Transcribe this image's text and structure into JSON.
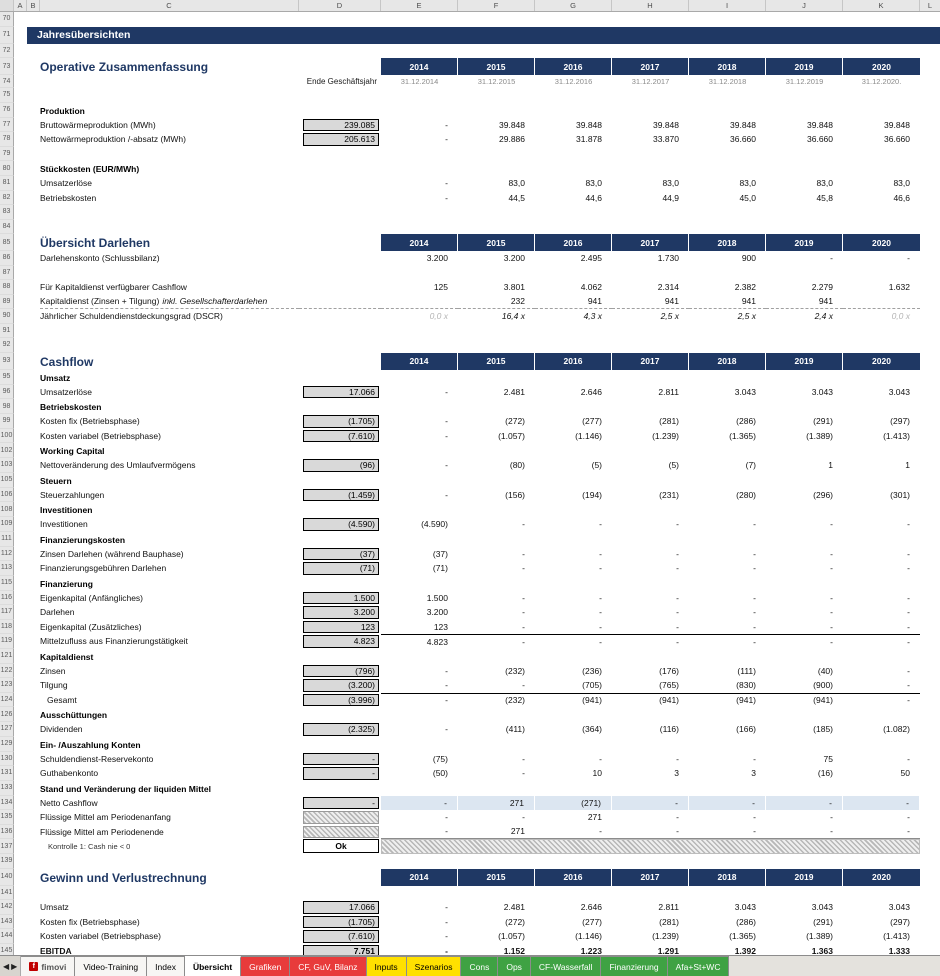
{
  "banner": "Jahresübersichten",
  "columns": [
    "A",
    "B",
    "C",
    "D",
    "E",
    "F",
    "G",
    "H",
    "I",
    "J",
    "K",
    "L"
  ],
  "years": [
    "2014",
    "2015",
    "2016",
    "2017",
    "2018",
    "2019",
    "2020"
  ],
  "dates": [
    "31.12.2014",
    "31.12.2015",
    "31.12.2016",
    "31.12.2017",
    "31.12.2018",
    "31.12.2019",
    "31.12.2020."
  ],
  "colors": {
    "navy": "#1F3864",
    "box_grey": "#D9D9D9",
    "highlight_blue": "#DCE6F1",
    "tab_red": "#E83B3B",
    "tab_yellow": "#FFE000",
    "tab_green": "#3FA243"
  },
  "rows": [
    {
      "n": "70",
      "t": "empty"
    },
    {
      "n": "71",
      "t": "banner"
    },
    {
      "n": "72",
      "t": "empty"
    },
    {
      "n": "73",
      "t": "years",
      "title": "Operative Zusammenfassung"
    },
    {
      "n": "74",
      "t": "dates",
      "label": "Ende Geschäftsjahr"
    },
    {
      "n": "75",
      "t": "empty"
    },
    {
      "n": "76",
      "t": "heading",
      "label": "Produktion"
    },
    {
      "n": "77",
      "t": "data",
      "label": "Bruttowärmeproduktion (MWh)",
      "d": "239.085",
      "v": [
        "-",
        "39.848",
        "39.848",
        "39.848",
        "39.848",
        "39.848",
        "39.848"
      ]
    },
    {
      "n": "78",
      "t": "data",
      "label": "Nettowärmeproduktion /-absatz (MWh)",
      "d": "205.613",
      "v": [
        "-",
        "29.886",
        "31.878",
        "33.870",
        "36.660",
        "36.660",
        "36.660"
      ]
    },
    {
      "n": "79",
      "t": "empty"
    },
    {
      "n": "80",
      "t": "heading",
      "label": "Stückkosten (EUR/MWh)"
    },
    {
      "n": "81",
      "t": "data",
      "label": "Umsatzerlöse",
      "v": [
        "-",
        "83,0",
        "83,0",
        "83,0",
        "83,0",
        "83,0",
        "83,0"
      ]
    },
    {
      "n": "82",
      "t": "data",
      "label": "Betriebskosten",
      "v": [
        "-",
        "44,5",
        "44,6",
        "44,9",
        "45,0",
        "45,8",
        "46,6"
      ]
    },
    {
      "n": "83",
      "t": "empty"
    },
    {
      "n": "84",
      "t": "empty"
    },
    {
      "n": "85",
      "t": "years",
      "title": "Übersicht Darlehen"
    },
    {
      "n": "86",
      "t": "data",
      "label": "Darlehenskonto (Schlussbilanz)",
      "v": [
        "3.200",
        "3.200",
        "2.495",
        "1.730",
        "900",
        "-",
        "-"
      ]
    },
    {
      "n": "87",
      "t": "empty"
    },
    {
      "n": "88",
      "t": "data",
      "label": "Für Kapitaldienst verfügbarer Cashflow",
      "v": [
        "125",
        "3.801",
        "4.062",
        "2.314",
        "2.382",
        "2.279",
        "1.632"
      ]
    },
    {
      "n": "89",
      "t": "data",
      "label": "Kapitaldienst (Zinsen + Tilgung)",
      "label_italic": "inkl. Gesellschafterdarlehen",
      "v": [
        "",
        "232",
        "941",
        "941",
        "941",
        "941",
        ""
      ],
      "dashed": true
    },
    {
      "n": "90",
      "t": "data",
      "label": "Jährlicher Schuldendienstdeckungsgrad (DSCR)",
      "v": [
        "0,0 x",
        "16,4 x",
        "4,3 x",
        "2,5 x",
        "2,5 x",
        "2,4 x",
        "0,0 x"
      ],
      "muted": [
        0,
        6
      ],
      "iv": true
    },
    {
      "n": "91",
      "t": "empty"
    },
    {
      "n": "92",
      "t": "empty"
    },
    {
      "n": "93",
      "t": "years",
      "title": "Cashflow"
    },
    {
      "n": "95",
      "t": "heading",
      "label": "Umsatz"
    },
    {
      "n": "96",
      "t": "data",
      "label": "Umsatzerlöse",
      "d": "17.066",
      "v": [
        "-",
        "2.481",
        "2.646",
        "2.811",
        "3.043",
        "3.043",
        "3.043"
      ]
    },
    {
      "n": "98",
      "t": "heading",
      "label": "Betriebskosten"
    },
    {
      "n": "99",
      "t": "data",
      "label": "Kosten fix (Betriebsphase)",
      "d": "(1.705)",
      "v": [
        "-",
        "(272)",
        "(277)",
        "(281)",
        "(286)",
        "(291)",
        "(297)"
      ]
    },
    {
      "n": "100",
      "t": "data",
      "label": "Kosten variabel (Betriebsphase)",
      "d": "(7.610)",
      "v": [
        "-",
        "(1.057)",
        "(1.146)",
        "(1.239)",
        "(1.365)",
        "(1.389)",
        "(1.413)"
      ]
    },
    {
      "n": "102",
      "t": "heading",
      "label": "Working Capital"
    },
    {
      "n": "103",
      "t": "data",
      "label": "Nettoveränderung des Umlaufvermögens",
      "d": "(96)",
      "v": [
        "-",
        "(80)",
        "(5)",
        "(5)",
        "(7)",
        "1",
        "1"
      ]
    },
    {
      "n": "105",
      "t": "heading",
      "label": "Steuern"
    },
    {
      "n": "106",
      "t": "data",
      "label": "Steuerzahlungen",
      "d": "(1.459)",
      "v": [
        "-",
        "(156)",
        "(194)",
        "(231)",
        "(280)",
        "(296)",
        "(301)"
      ]
    },
    {
      "n": "108",
      "t": "heading",
      "label": "Investitionen"
    },
    {
      "n": "109",
      "t": "data",
      "label": "Investitionen",
      "d": "(4.590)",
      "v": [
        "(4.590)",
        "-",
        "-",
        "-",
        "-",
        "-",
        "-"
      ]
    },
    {
      "n": "111",
      "t": "heading",
      "label": "Finanzierungskosten"
    },
    {
      "n": "112",
      "t": "data",
      "label": "Zinsen Darlehen (während Bauphase)",
      "d": "(37)",
      "v": [
        "(37)",
        "-",
        "-",
        "-",
        "-",
        "-",
        "-"
      ]
    },
    {
      "n": "113",
      "t": "data",
      "label": "Finanzierungsgebühren Darlehen",
      "d": "(71)",
      "v": [
        "(71)",
        "-",
        "-",
        "-",
        "-",
        "-",
        "-"
      ]
    },
    {
      "n": "115",
      "t": "heading",
      "label": "Finanzierung"
    },
    {
      "n": "116",
      "t": "data",
      "label": "Eigenkapital (Anfängliches)",
      "d": "1.500",
      "v": [
        "1.500",
        "-",
        "-",
        "-",
        "-",
        "-",
        "-"
      ]
    },
    {
      "n": "117",
      "t": "data",
      "label": "Darlehen",
      "d": "3.200",
      "v": [
        "3.200",
        "-",
        "-",
        "-",
        "-",
        "-",
        "-"
      ]
    },
    {
      "n": "118",
      "t": "data",
      "label": "Eigenkapital (Zusätzliches)",
      "d": "123",
      "v": [
        "123",
        "-",
        "-",
        "-",
        "-",
        "-",
        "-"
      ]
    },
    {
      "n": "119",
      "t": "data",
      "label": "Mittelzufluss aus Finanzierungstätigkeit",
      "d": "4.823",
      "v": [
        "4.823",
        "-",
        "-",
        "-",
        "-",
        "-",
        "-"
      ],
      "sum": true
    },
    {
      "n": "121",
      "t": "heading",
      "label": "Kapitaldienst"
    },
    {
      "n": "122",
      "t": "data",
      "label": "Zinsen",
      "d": "(796)",
      "v": [
        "-",
        "(232)",
        "(236)",
        "(176)",
        "(111)",
        "(40)",
        "-"
      ]
    },
    {
      "n": "123",
      "t": "data",
      "label": "Tilgung",
      "d": "(3.200)",
      "v": [
        "-",
        "-",
        "(705)",
        "(765)",
        "(830)",
        "(900)",
        "-"
      ]
    },
    {
      "n": "124",
      "t": "data",
      "label": "Gesamt",
      "d": "(3.996)",
      "v": [
        "-",
        "(232)",
        "(941)",
        "(941)",
        "(941)",
        "(941)",
        "-"
      ],
      "sum": true,
      "indent": true
    },
    {
      "n": "126",
      "t": "heading",
      "label": "Ausschüttungen"
    },
    {
      "n": "127",
      "t": "data",
      "label": "Dividenden",
      "d": "(2.325)",
      "v": [
        "-",
        "(411)",
        "(364)",
        "(116)",
        "(166)",
        "(185)",
        "(1.082)"
      ]
    },
    {
      "n": "129",
      "t": "heading",
      "label": "Ein- /Auszahlung Konten"
    },
    {
      "n": "130",
      "t": "data",
      "label": "Schuldendienst-Reservekonto",
      "d": "-",
      "v": [
        "(75)",
        "-",
        "-",
        "-",
        "-",
        "75",
        "-"
      ]
    },
    {
      "n": "131",
      "t": "data",
      "label": "Guthabenkonto",
      "d": "-",
      "v": [
        "(50)",
        "-",
        "10",
        "3",
        "3",
        "(16)",
        "50"
      ]
    },
    {
      "n": "133",
      "t": "heading",
      "label": "Stand und Veränderung der liquiden Mittel"
    },
    {
      "n": "134",
      "t": "data",
      "label": "Netto Cashflow",
      "d": "-",
      "v": [
        "-",
        "271",
        "(271)",
        "-",
        "-",
        "-",
        "-"
      ],
      "blue": true
    },
    {
      "n": "135",
      "t": "data",
      "label": "Flüssige Mittel am Periodenanfang",
      "dhatch": true,
      "v": [
        "-",
        "-",
        "271",
        "-",
        "-",
        "-",
        "-"
      ]
    },
    {
      "n": "136",
      "t": "data",
      "label": "Flüssige Mittel am Periodenende",
      "dhatch": true,
      "v": [
        "-",
        "271",
        "-",
        "-",
        "-",
        "-",
        "-"
      ],
      "bline": true
    },
    {
      "n": "137",
      "t": "kontrolle",
      "label": "Kontrolle 1: Cash nie < 0",
      "ok": "Ok"
    },
    {
      "n": "139",
      "t": "empty"
    },
    {
      "n": "140",
      "t": "years",
      "title": "Gewinn und Verlustrechnung"
    },
    {
      "n": "141",
      "t": "empty"
    },
    {
      "n": "142",
      "t": "data",
      "label": "Umsatz",
      "d": "17.066",
      "v": [
        "-",
        "2.481",
        "2.646",
        "2.811",
        "3.043",
        "3.043",
        "3.043"
      ]
    },
    {
      "n": "143",
      "t": "data",
      "label": "Kosten fix (Betriebsphase)",
      "d": "(1.705)",
      "v": [
        "-",
        "(272)",
        "(277)",
        "(281)",
        "(286)",
        "(291)",
        "(297)"
      ]
    },
    {
      "n": "144",
      "t": "data",
      "label": "Kosten variabel (Betriebsphase)",
      "d": "(7.610)",
      "v": [
        "-",
        "(1.057)",
        "(1.146)",
        "(1.239)",
        "(1.365)",
        "(1.389)",
        "(1.413)"
      ]
    },
    {
      "n": "145",
      "t": "data",
      "label": "EBITDA",
      "d": "7.751",
      "v": [
        "-",
        "1.152",
        "1.223",
        "1.291",
        "1.392",
        "1.363",
        "1.333"
      ],
      "bold": true
    }
  ],
  "tabbar": {
    "nav_left": "◀",
    "nav_right": "▶",
    "logo_letter": "f",
    "tabs": [
      {
        "label": "fimovi",
        "style": "logo"
      },
      {
        "label": "Video-Training",
        "style": "white"
      },
      {
        "label": "Index",
        "style": "white"
      },
      {
        "label": "Übersicht",
        "style": "active"
      },
      {
        "label": "Grafiken",
        "style": "red"
      },
      {
        "label": "CF, GuV, Bilanz",
        "style": "red"
      },
      {
        "label": "Inputs",
        "style": "yellow"
      },
      {
        "label": "Szenarios",
        "style": "yellow"
      },
      {
        "label": "Cons",
        "style": "green"
      },
      {
        "label": "Ops",
        "style": "green"
      },
      {
        "label": "CF-Wasserfall",
        "style": "green"
      },
      {
        "label": "Finanzierung",
        "style": "green"
      },
      {
        "label": "Afa+St+WC",
        "style": "green"
      }
    ]
  }
}
